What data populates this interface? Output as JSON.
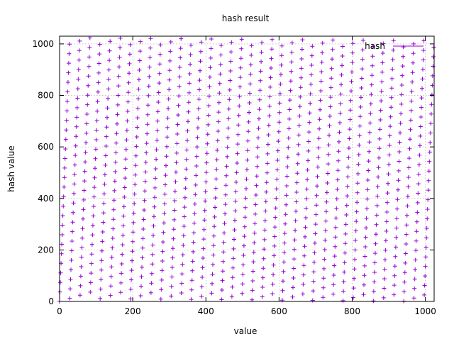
{
  "chart_data": {
    "type": "scatter",
    "title": "hash result",
    "xlabel": "value",
    "ylabel": "hash value",
    "xlim": [
      0,
      1024
    ],
    "ylim": [
      0,
      1030
    ],
    "xticks": [
      0,
      200,
      400,
      600,
      800,
      1000
    ],
    "yticks": [
      0,
      200,
      400,
      600,
      800,
      1000
    ],
    "grid": true,
    "legend_position": "top-right",
    "series": [
      {
        "name": "hash",
        "color": "#9400d3",
        "marker": "plus",
        "generator": {
          "x_start": 0,
          "x_end": 1023,
          "step": 1,
          "multiplier": 37,
          "modulus": 1024
        }
      }
    ]
  }
}
